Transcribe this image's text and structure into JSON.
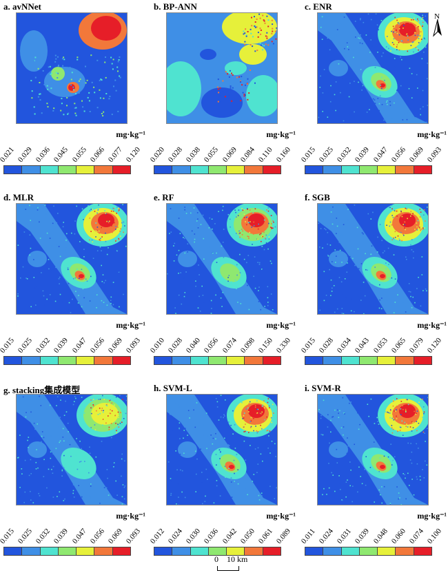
{
  "unit_label": "mg·kg⁻¹",
  "legend_colors": [
    "#2255dd",
    "#3f8fe6",
    "#4fe3d0",
    "#8fe870",
    "#e6f03a",
    "#f2783a",
    "#e61e28"
  ],
  "panels": [
    {
      "title": "a. avNNet",
      "ticks": [
        "0.021",
        "0.029",
        "0.036",
        "0.045",
        "0.055",
        "0.066",
        "0.077",
        "0.120"
      ],
      "pattern": "avnnet"
    },
    {
      "title": "b. BP-ANN",
      "ticks": [
        "0.020",
        "0.028",
        "0.038",
        "0.055",
        "0.069",
        "0.084",
        "0.110",
        "0.160"
      ],
      "pattern": "bpann"
    },
    {
      "title": "c. ENR",
      "ticks": [
        "0.015",
        "0.025",
        "0.032",
        "0.039",
        "0.047",
        "0.056",
        "0.069",
        "0.093"
      ],
      "pattern": "enr"
    },
    {
      "title": "d. MLR",
      "ticks": [
        "0.015",
        "0.025",
        "0.032",
        "0.039",
        "0.047",
        "0.056",
        "0.069",
        "0.093"
      ],
      "pattern": "mlr"
    },
    {
      "title": "e. RF",
      "ticks": [
        "0.010",
        "0.028",
        "0.040",
        "0.056",
        "0.074",
        "0.098",
        "0.150",
        "0.330"
      ],
      "pattern": "rf"
    },
    {
      "title": "f. SGB",
      "ticks": [
        "0.015",
        "0.028",
        "0.034",
        "0.043",
        "0.053",
        "0.065",
        "0.079",
        "0.120"
      ],
      "pattern": "sgb"
    },
    {
      "title": "g. stacking集成模型",
      "ticks": [
        "0.015",
        "0.025",
        "0.032",
        "0.039",
        "0.047",
        "0.056",
        "0.069",
        "0.093"
      ],
      "pattern": "stacking"
    },
    {
      "title": "h. SVM-L",
      "ticks": [
        "0.012",
        "0.024",
        "0.030",
        "0.036",
        "0.042",
        "0.050",
        "0.061",
        "0.089"
      ],
      "pattern": "svml"
    },
    {
      "title": "i. SVM-R",
      "ticks": [
        "0.011",
        "0.024",
        "0.031",
        "0.039",
        "0.048",
        "0.060",
        "0.074",
        "0.100"
      ],
      "pattern": "svmr"
    }
  ],
  "north_label": "N",
  "scale": {
    "zero": "0",
    "label": "10 km"
  }
}
